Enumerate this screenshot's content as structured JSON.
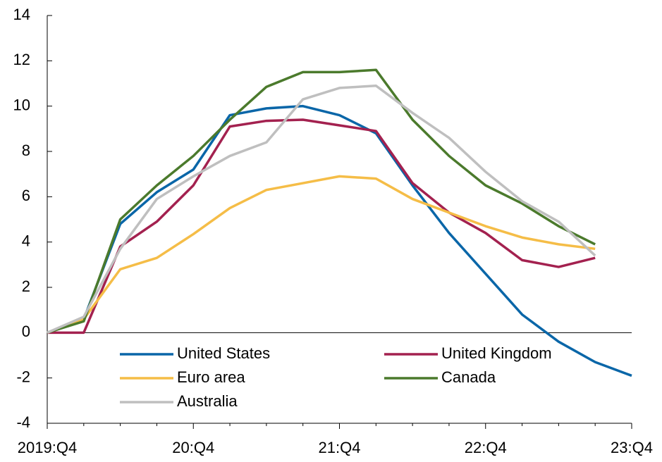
{
  "chart_data": {
    "type": "line",
    "categories": [
      "2019:Q4",
      null,
      null,
      null,
      "20:Q4",
      null,
      null,
      null,
      "21:Q4",
      null,
      null,
      null,
      "22:Q4",
      null,
      null,
      null,
      "23:Q4"
    ],
    "series": [
      {
        "name": "United States",
        "color": "#0a66a8",
        "values": [
          0,
          0.6,
          4.8,
          6.2,
          7.2,
          9.6,
          9.9,
          10.0,
          9.6,
          8.8,
          6.5,
          4.4,
          2.6,
          0.8,
          -0.4,
          -1.3,
          -1.9
        ]
      },
      {
        "name": "United Kingdom",
        "color": "#a3214f",
        "values": [
          0,
          0,
          3.8,
          4.9,
          6.5,
          9.1,
          9.35,
          9.4,
          9.15,
          8.9,
          6.6,
          5.3,
          4.4,
          3.2,
          2.9,
          3.3,
          null
        ]
      },
      {
        "name": "Euro area",
        "color": "#f5bd47",
        "values": [
          0,
          0.6,
          2.8,
          3.3,
          4.35,
          5.5,
          6.3,
          6.6,
          6.9,
          6.8,
          5.9,
          5.3,
          4.7,
          4.2,
          3.9,
          3.7,
          null
        ]
      },
      {
        "name": "Canada",
        "color": "#4b7a2c",
        "values": [
          0,
          0.5,
          5.0,
          6.5,
          7.8,
          9.4,
          10.85,
          11.5,
          11.5,
          11.6,
          9.4,
          7.8,
          6.5,
          5.7,
          4.7,
          3.9,
          null
        ]
      },
      {
        "name": "Australia",
        "color": "#bfbfbf",
        "values": [
          0,
          0.7,
          3.7,
          5.9,
          6.9,
          7.8,
          8.4,
          10.3,
          10.8,
          10.9,
          9.7,
          8.6,
          7.1,
          5.8,
          4.9,
          3.4,
          null
        ]
      }
    ],
    "ylim": [
      -4,
      14
    ],
    "yticks": [
      -4,
      -2,
      0,
      2,
      4,
      6,
      8,
      10,
      12,
      14
    ]
  }
}
